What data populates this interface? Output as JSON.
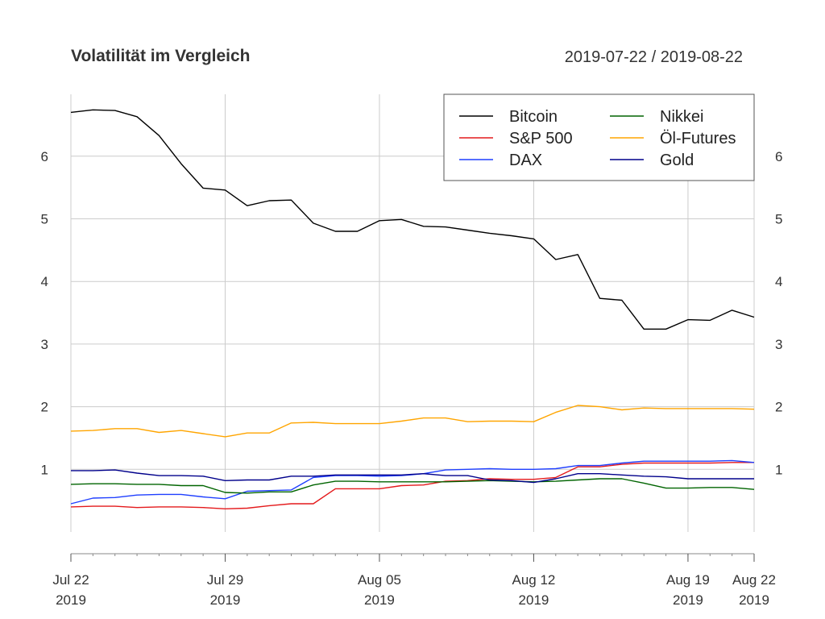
{
  "chart_data": {
    "type": "line",
    "title": "Volatilität im Vergleich",
    "date_range": "2019-07-22 / 2019-08-22",
    "ylim": [
      0,
      7
    ],
    "y_ticks": [
      "1",
      "2",
      "3",
      "4",
      "5",
      "6"
    ],
    "x_dates": [
      "2019-07-22",
      "2019-07-23",
      "2019-07-24",
      "2019-07-25",
      "2019-07-26",
      "2019-07-27",
      "2019-07-28",
      "2019-07-29",
      "2019-07-30",
      "2019-07-31",
      "2019-08-01",
      "2019-08-02",
      "2019-08-03",
      "2019-08-04",
      "2019-08-05",
      "2019-08-06",
      "2019-08-07",
      "2019-08-08",
      "2019-08-09",
      "2019-08-10",
      "2019-08-11",
      "2019-08-12",
      "2019-08-13",
      "2019-08-14",
      "2019-08-15",
      "2019-08-16",
      "2019-08-17",
      "2019-08-18",
      "2019-08-19",
      "2019-08-20",
      "2019-08-21",
      "2019-08-22"
    ],
    "x_ticks": [
      {
        "date": "2019-07-22",
        "line1": "Jul 22",
        "line2": "2019"
      },
      {
        "date": "2019-07-29",
        "line1": "Jul 29",
        "line2": "2019"
      },
      {
        "date": "2019-08-05",
        "line1": "Aug 05",
        "line2": "2019"
      },
      {
        "date": "2019-08-12",
        "line1": "Aug 12",
        "line2": "2019"
      },
      {
        "date": "2019-08-19",
        "line1": "Aug 19",
        "line2": "2019"
      },
      {
        "date": "2019-08-22",
        "line1": "Aug 22",
        "line2": "2019"
      }
    ],
    "grid": true,
    "legend_position": "top-right",
    "series": [
      {
        "name": "Bitcoin",
        "color": "#000000",
        "values": [
          6.7,
          6.74,
          6.73,
          6.63,
          6.33,
          5.88,
          5.49,
          5.46,
          5.21,
          5.29,
          5.3,
          4.93,
          4.8,
          4.8,
          4.97,
          4.99,
          4.88,
          4.87,
          4.82,
          4.77,
          4.73,
          4.68,
          4.35,
          4.43,
          3.73,
          3.7,
          3.24,
          3.24,
          3.39,
          3.38,
          3.54,
          3.43
        ]
      },
      {
        "name": "S&P 500",
        "color": "#e41a1c",
        "values": [
          0.4,
          0.41,
          0.41,
          0.39,
          0.4,
          0.4,
          0.39,
          0.37,
          0.38,
          0.42,
          0.45,
          0.45,
          0.69,
          0.69,
          0.69,
          0.74,
          0.75,
          0.81,
          0.82,
          0.85,
          0.84,
          0.84,
          0.87,
          1.04,
          1.04,
          1.08,
          1.1,
          1.1,
          1.1,
          1.1,
          1.11,
          1.11
        ]
      },
      {
        "name": "DAX",
        "color": "#1f3fff",
        "values": [
          0.45,
          0.54,
          0.55,
          0.59,
          0.6,
          0.6,
          0.56,
          0.53,
          0.65,
          0.66,
          0.67,
          0.87,
          0.9,
          0.9,
          0.89,
          0.9,
          0.93,
          0.99,
          1.0,
          1.01,
          1.0,
          1.0,
          1.01,
          1.06,
          1.06,
          1.1,
          1.13,
          1.13,
          1.13,
          1.13,
          1.14,
          1.11
        ]
      },
      {
        "name": "Nikkei",
        "color": "#006400",
        "values": [
          0.76,
          0.77,
          0.77,
          0.76,
          0.76,
          0.74,
          0.74,
          0.63,
          0.62,
          0.64,
          0.64,
          0.75,
          0.81,
          0.81,
          0.8,
          0.8,
          0.8,
          0.8,
          0.81,
          0.82,
          0.81,
          0.8,
          0.81,
          0.83,
          0.85,
          0.85,
          0.78,
          0.7,
          0.7,
          0.71,
          0.71,
          0.68
        ]
      },
      {
        "name": "Öl-Futures",
        "color": "#ffa500",
        "values": [
          1.61,
          1.62,
          1.65,
          1.65,
          1.59,
          1.62,
          1.57,
          1.52,
          1.58,
          1.58,
          1.74,
          1.75,
          1.73,
          1.73,
          1.73,
          1.77,
          1.82,
          1.82,
          1.76,
          1.77,
          1.77,
          1.76,
          1.91,
          2.02,
          2.0,
          1.95,
          1.98,
          1.97,
          1.97,
          1.97,
          1.97,
          1.96
        ]
      },
      {
        "name": "Gold",
        "color": "#00008b",
        "values": [
          0.98,
          0.98,
          0.99,
          0.94,
          0.9,
          0.9,
          0.89,
          0.82,
          0.83,
          0.83,
          0.89,
          0.89,
          0.91,
          0.91,
          0.91,
          0.91,
          0.93,
          0.9,
          0.9,
          0.83,
          0.82,
          0.79,
          0.85,
          0.93,
          0.93,
          0.91,
          0.89,
          0.88,
          0.85,
          0.85,
          0.85,
          0.85
        ]
      }
    ]
  }
}
